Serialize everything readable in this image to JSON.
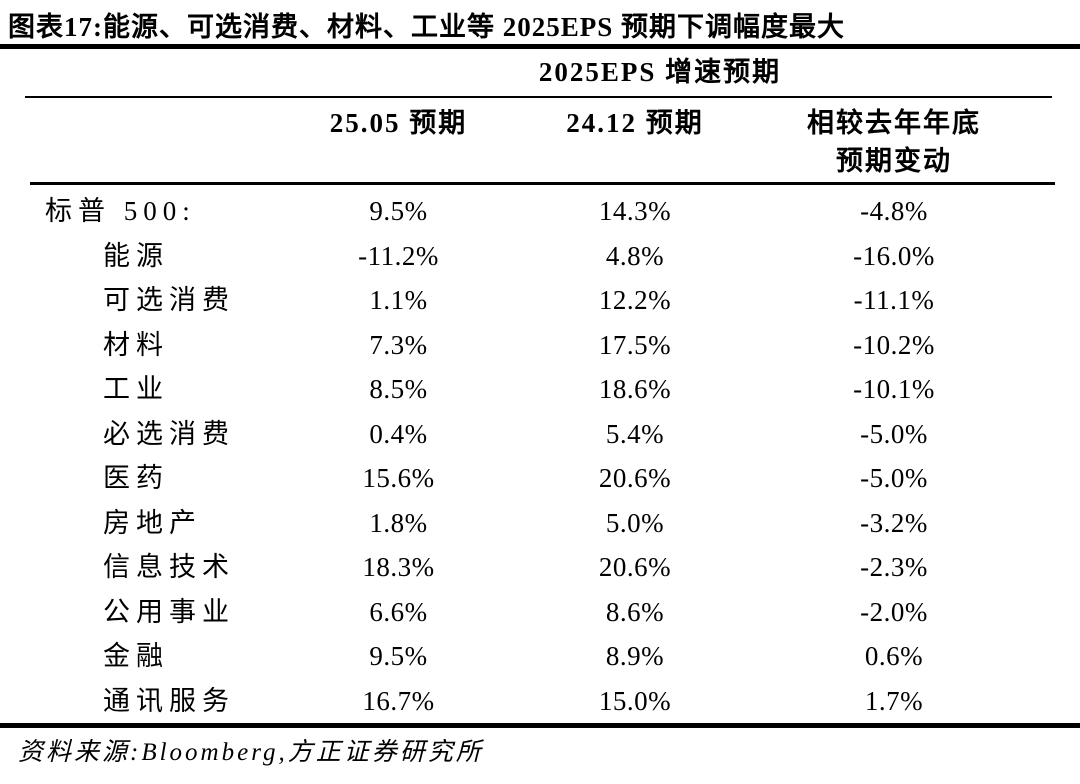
{
  "figure_title": "图表17:能源、可选消费、材料、工业等 2025EPS 预期下调幅度最大",
  "source_note": "资料来源:Bloomberg,方正证券研究所",
  "chart_data": {
    "type": "table",
    "title": "2025EPS 增速预期",
    "columns": [
      "25.05 预期",
      "24.12 预期",
      "相较去年年底 预期变动"
    ],
    "header": {
      "group": "2025EPS 增速预期",
      "col1": "25.05 预期",
      "col2": "24.12 预期",
      "col3_line1": "相较去年年底",
      "col3_line2": "预期变动"
    },
    "rows": [
      {
        "label": "标普 500:",
        "v1": "9.5%",
        "v2": "14.3%",
        "v3": "-4.8%"
      },
      {
        "label": "能源",
        "v1": "-11.2%",
        "v2": "4.8%",
        "v3": "-16.0%"
      },
      {
        "label": "可选消费",
        "v1": "1.1%",
        "v2": "12.2%",
        "v3": "-11.1%"
      },
      {
        "label": "材料",
        "v1": "7.3%",
        "v2": "17.5%",
        "v3": "-10.2%"
      },
      {
        "label": "工业",
        "v1": "8.5%",
        "v2": "18.6%",
        "v3": "-10.1%"
      },
      {
        "label": "必选消费",
        "v1": "0.4%",
        "v2": "5.4%",
        "v3": "-5.0%"
      },
      {
        "label": "医药",
        "v1": "15.6%",
        "v2": "20.6%",
        "v3": "-5.0%"
      },
      {
        "label": "房地产",
        "v1": "1.8%",
        "v2": "5.0%",
        "v3": "-3.2%"
      },
      {
        "label": "信息技术",
        "v1": "18.3%",
        "v2": "20.6%",
        "v3": "-2.3%"
      },
      {
        "label": "公用事业",
        "v1": "6.6%",
        "v2": "8.6%",
        "v3": "-2.0%"
      },
      {
        "label": "金融",
        "v1": "9.5%",
        "v2": "8.9%",
        "v3": "0.6%"
      },
      {
        "label": "通讯服务",
        "v1": "16.7%",
        "v2": "15.0%",
        "v3": "1.7%"
      }
    ],
    "colors": {
      "text": "#000000",
      "background": "#ffffff",
      "rule": "#000000"
    }
  }
}
